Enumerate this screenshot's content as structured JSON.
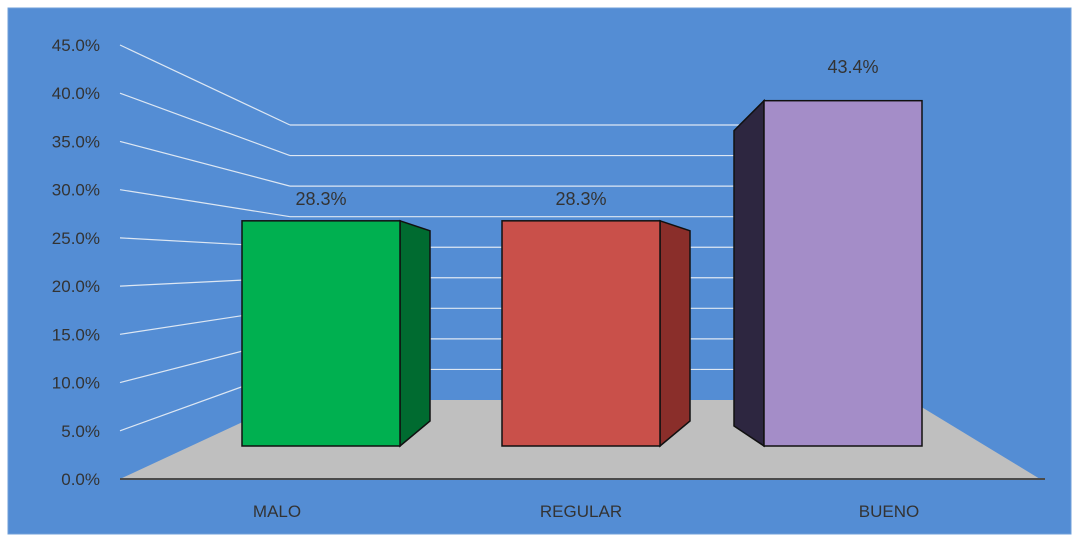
{
  "chart_data": {
    "type": "bar",
    "style": "3d-column",
    "categories": [
      "MALO",
      "REGULAR",
      "BUENO"
    ],
    "values": [
      28.3,
      28.3,
      43.4
    ],
    "data_labels": [
      "28.3%",
      "28.3%",
      "43.4%"
    ],
    "y_ticks": [
      "0.0%",
      "5.0%",
      "10.0%",
      "15.0%",
      "20.0%",
      "25.0%",
      "30.0%",
      "35.0%",
      "40.0%",
      "45.0%"
    ],
    "ylim": [
      0,
      45
    ],
    "grid": true,
    "legend": "none",
    "colors": {
      "background": "#548dd4",
      "floor": "#bfbfbf",
      "gridline": "#dde7f3",
      "label_text": "#333333",
      "bars": [
        {
          "front": "#00b050",
          "side": "#006b30"
        },
        {
          "front": "#c9504a",
          "side": "#8a2e2a"
        },
        {
          "front": "#a48dc8",
          "side": "#2d2640"
        }
      ]
    }
  }
}
